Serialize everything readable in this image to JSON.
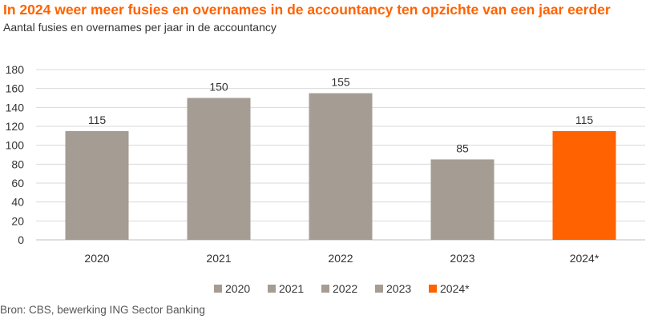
{
  "title": "In 2024 weer meer fusies en overnames in de accountancy ten opzichte van een jaar eerder",
  "subtitle": "Aantal fusies en overnames per jaar in de accountancy",
  "source": "Bron: CBS, bewerking ING Sector Banking",
  "colors": {
    "title": "#FF6200",
    "bar_default": "#A59C94",
    "bar_highlight": "#FF6200",
    "grid": "#D9D9D9",
    "text": "#333333"
  },
  "chart_data": {
    "type": "bar",
    "categories": [
      "2020",
      "2021",
      "2022",
      "2023",
      "2024*"
    ],
    "values": [
      115,
      150,
      155,
      85,
      115
    ],
    "data_labels": [
      "115",
      "150",
      "155",
      "85",
      "115"
    ],
    "bar_colors": [
      "#A59C94",
      "#A59C94",
      "#A59C94",
      "#A59C94",
      "#FF6200"
    ],
    "legend": [
      "2020",
      "2021",
      "2022",
      "2023",
      "2024*"
    ],
    "legend_position": "bottom",
    "ylim": [
      0,
      180
    ],
    "yticks": [
      0,
      20,
      40,
      60,
      80,
      100,
      120,
      140,
      160,
      180
    ],
    "grid": true
  }
}
